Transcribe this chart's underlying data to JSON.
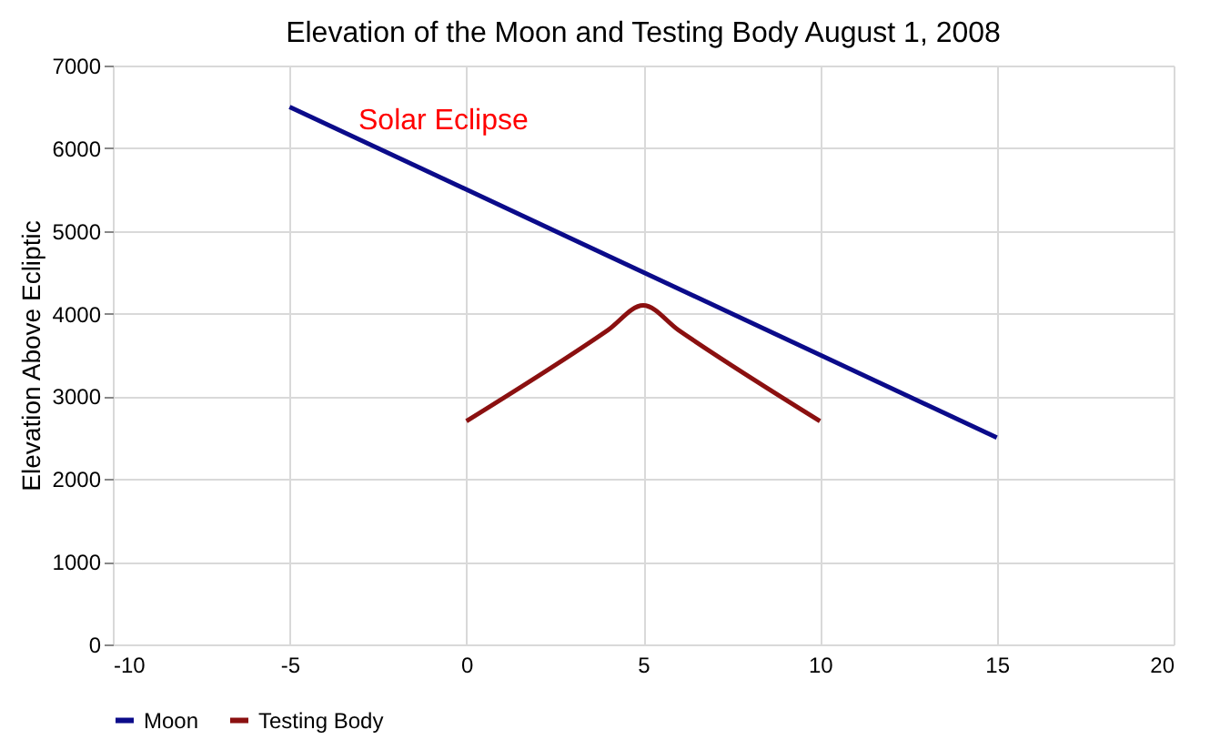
{
  "chart_data": {
    "type": "line",
    "title": "Elevation of the Moon and Testing Body August 1, 2008",
    "ylabel": "Elevation Above Ecliptic",
    "series": [
      {
        "name": "Moon",
        "color": "#0b0b8a",
        "x": [
          -5,
          15
        ],
        "values": [
          6500,
          2500
        ]
      },
      {
        "name": "Testing Body",
        "color": "#8b1010",
        "x": [
          0,
          4,
          5,
          6,
          10
        ],
        "values": [
          2700,
          3800,
          4100,
          3800,
          2700
        ]
      }
    ],
    "xlim": [
      -10,
      20
    ],
    "xticks": [
      -10,
      -5,
      0,
      5,
      10,
      15,
      20
    ],
    "ylim": [
      0,
      7000
    ],
    "yticks": [
      0,
      1000,
      2000,
      3000,
      4000,
      5000,
      6000,
      7000
    ],
    "annotations": [
      "Solar Eclipse"
    ],
    "grid": true,
    "legend": "bottom",
    "marker": "none",
    "line_style": "solid"
  }
}
